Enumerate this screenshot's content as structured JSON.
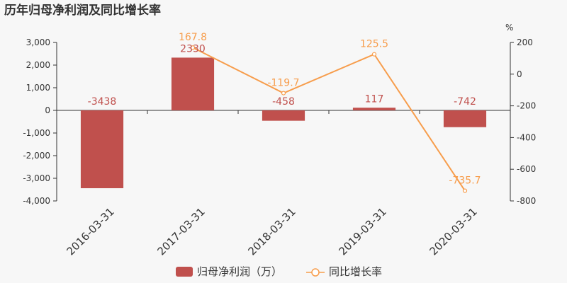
{
  "chart_data": {
    "type": "bar",
    "title": "历年归母净利润及同比增长率",
    "categories": [
      "2016-03-31",
      "2017-03-31",
      "2018-03-31",
      "2019-03-31",
      "2020-03-31"
    ],
    "series": [
      {
        "name": "归母净利润（万）",
        "type": "bar",
        "axis": "left",
        "color": "#c0504d",
        "values": [
          -3438,
          2330,
          -458,
          117,
          -742
        ],
        "labels": [
          "-3438",
          "2330",
          "-458",
          "117",
          "-742"
        ]
      },
      {
        "name": "同比增长率",
        "type": "line",
        "axis": "right",
        "color": "#f79d4c",
        "values": [
          null,
          167.8,
          -119.7,
          125.5,
          -735.7
        ],
        "labels": [
          "",
          "167.8",
          "-119.7",
          "125.5",
          "-735.7"
        ]
      }
    ],
    "y_left": {
      "ylim": [
        -4000,
        3000
      ],
      "ticks": [
        3000,
        2000,
        1000,
        0,
        -1000,
        -2000,
        -3000,
        -4000
      ],
      "tick_labels": [
        "3,000",
        "2,000",
        "1,000",
        "0",
        "-1,000",
        "-2,000",
        "-3,000",
        "-4,000"
      ]
    },
    "y_right": {
      "unit": "%",
      "ylim": [
        -800,
        200
      ],
      "ticks": [
        200,
        0,
        -200,
        -400,
        -600,
        -800
      ],
      "tick_labels": [
        "200",
        "0",
        "-200",
        "-400",
        "-600",
        "-800"
      ]
    },
    "legend_position": "bottom-center",
    "grid": false
  }
}
